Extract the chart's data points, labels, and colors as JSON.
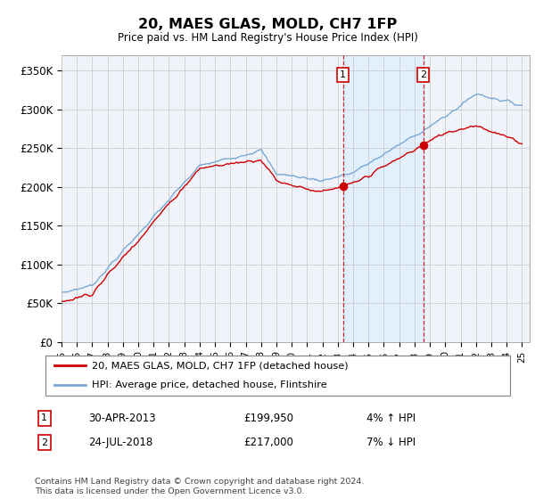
{
  "title": "20, MAES GLAS, MOLD, CH7 1FP",
  "subtitle": "Price paid vs. HM Land Registry's House Price Index (HPI)",
  "ylabel_ticks": [
    "£0",
    "£50K",
    "£100K",
    "£150K",
    "£200K",
    "£250K",
    "£300K",
    "£350K"
  ],
  "ylim": [
    0,
    370000
  ],
  "xlim_start": 1995.0,
  "xlim_end": 2025.5,
  "hpi_color": "#7aa8d4",
  "price_color": "#cc0000",
  "shade_color": "#ddeeff",
  "annotation1": {
    "label": "1",
    "date": "30-APR-2013",
    "price": "£199,950",
    "hpi_rel": "4% ↑ HPI",
    "x_year": 2013.33,
    "y_val": 199950
  },
  "annotation2": {
    "label": "2",
    "date": "24-JUL-2018",
    "price": "£217,000",
    "hpi_rel": "7% ↓ HPI",
    "x_year": 2018.56,
    "y_val": 217000
  },
  "legend_line1": "20, MAES GLAS, MOLD, CH7 1FP (detached house)",
  "legend_line2": "HPI: Average price, detached house, Flintshire",
  "footer": "Contains HM Land Registry data © Crown copyright and database right 2024.\nThis data is licensed under the Open Government Licence v3.0.",
  "background_color": "#ffffff",
  "plot_bg_color": "#f0f4fa",
  "grid_color": "#cccccc"
}
